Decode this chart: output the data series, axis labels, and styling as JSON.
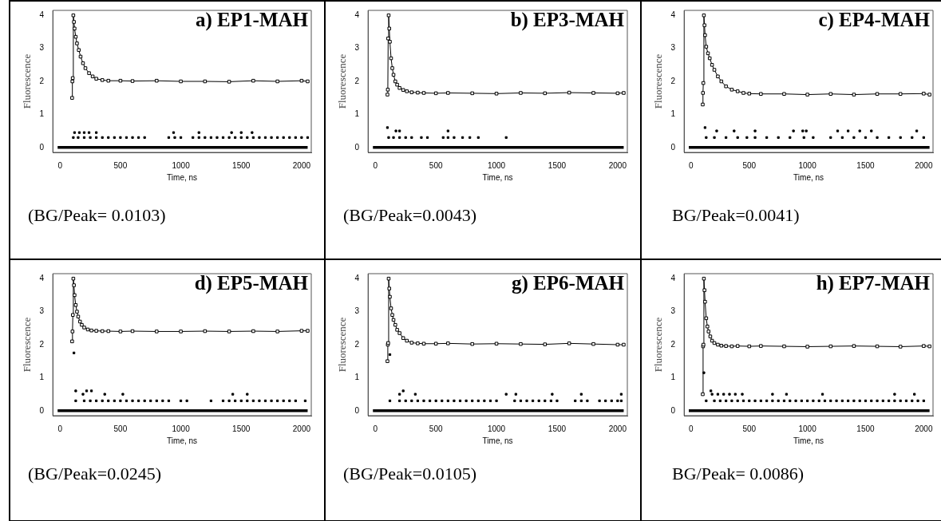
{
  "chart_data": [
    {
      "type": "scatter",
      "title": "a) EP1-MAH",
      "xlabel": "Time, ns",
      "ylabel": "Fluorescence",
      "xlim": [
        -60,
        2080
      ],
      "ylim": [
        -0.15,
        4.15
      ],
      "xticks": [
        0,
        500,
        1000,
        1500,
        2000
      ],
      "yticks": [
        0,
        1,
        2,
        3,
        4
      ],
      "grid": false,
      "legend": false,
      "marker": "square",
      "annotations": [
        "(BG/Peak= 0.0103)"
      ],
      "series": [
        {
          "type": "line",
          "color": "#000000",
          "x": [
            100,
            102,
            105,
            110,
            115,
            120,
            130,
            140,
            155,
            170,
            190,
            210,
            240,
            270,
            300,
            350,
            400,
            500,
            600,
            800,
            1000,
            1200,
            1400,
            1600,
            1800,
            2000,
            2050
          ],
          "values": [
            1.5,
            2.0,
            2.1,
            4.0,
            3.8,
            3.6,
            3.35,
            3.15,
            2.95,
            2.75,
            2.55,
            2.4,
            2.25,
            2.15,
            2.08,
            2.04,
            2.02,
            2.02,
            2.01,
            2.02,
            2.0,
            2.0,
            1.99,
            2.02,
            2.0,
            2.02,
            2.0
          ]
        },
        {
          "type": "scatter",
          "color": "#000000",
          "x": [
            110,
            150,
            200,
            250,
            300,
            350,
            400,
            450,
            500,
            550,
            600,
            650,
            700,
            900,
            950,
            1000,
            1100,
            1150,
            1200,
            1250,
            1300,
            1350,
            1400,
            1450,
            1500,
            1550,
            1600,
            1650,
            1700,
            1750,
            1800,
            1850,
            1900,
            1950,
            2000,
            2050
          ],
          "values": [
            0.3,
            0.3,
            0.3,
            0.3,
            0.3,
            0.3,
            0.3,
            0.3,
            0.3,
            0.3,
            0.3,
            0.3,
            0.3,
            0.3,
            0.3,
            0.3,
            0.3,
            0.3,
            0.3,
            0.3,
            0.3,
            0.3,
            0.3,
            0.3,
            0.3,
            0.3,
            0.3,
            0.3,
            0.3,
            0.3,
            0.3,
            0.3,
            0.3,
            0.3,
            0.3,
            0.3
          ]
        },
        {
          "type": "scatter",
          "color": "#000000",
          "x": [
            120,
            160,
            200,
            240,
            300,
            940,
            1150,
            1420,
            1500,
            1590
          ],
          "values": [
            0.45,
            0.45,
            0.45,
            0.45,
            0.45,
            0.45,
            0.45,
            0.45,
            0.45,
            0.45
          ]
        },
        {
          "type": "line",
          "marker": "none",
          "color": "#000000",
          "x": [
            -20,
            2050
          ],
          "values": [
            0,
            0
          ]
        }
      ]
    },
    {
      "type": "scatter",
      "title": "b) EP3-MAH",
      "xlabel": "Time, ns",
      "ylabel": "Fluorescence",
      "xlim": [
        -60,
        2080
      ],
      "ylim": [
        -0.15,
        4.15
      ],
      "xticks": [
        0,
        500,
        1000,
        1500,
        2000
      ],
      "yticks": [
        0,
        1,
        2,
        3,
        4
      ],
      "grid": false,
      "legend": false,
      "marker": "square",
      "annotations": [
        "(BG/Peak=0.0043)"
      ],
      "series": [
        {
          "type": "line",
          "color": "#000000",
          "x": [
            100,
            103,
            106,
            110,
            115,
            120,
            130,
            140,
            150,
            165,
            180,
            200,
            230,
            260,
            300,
            350,
            400,
            500,
            600,
            800,
            1000,
            1200,
            1400,
            1600,
            1800,
            2000,
            2050
          ],
          "values": [
            1.6,
            1.75,
            3.3,
            4.0,
            3.6,
            3.2,
            2.7,
            2.4,
            2.2,
            2.0,
            1.9,
            1.8,
            1.74,
            1.7,
            1.67,
            1.66,
            1.65,
            1.64,
            1.65,
            1.64,
            1.63,
            1.65,
            1.64,
            1.66,
            1.65,
            1.64,
            1.65
          ]
        },
        {
          "type": "scatter",
          "color": "#000000",
          "x": [
            110,
            150,
            200,
            250,
            300,
            380,
            430,
            560,
            600,
            650,
            720,
            780,
            850,
            1080
          ],
          "values": [
            0.3,
            0.3,
            0.3,
            0.3,
            0.3,
            0.3,
            0.3,
            0.3,
            0.3,
            0.3,
            0.3,
            0.3,
            0.3,
            0.3
          ]
        },
        {
          "type": "scatter",
          "color": "#000000",
          "x": [
            100,
            170,
            200,
            600
          ],
          "values": [
            0.6,
            0.5,
            0.5,
            0.5
          ]
        },
        {
          "type": "line",
          "marker": "none",
          "color": "#000000",
          "x": [
            -20,
            2050
          ],
          "values": [
            0,
            0
          ]
        }
      ]
    },
    {
      "type": "scatter",
      "title": "c) EP4-MAH",
      "xlabel": "Time, ns",
      "ylabel": "Fluorescence",
      "xlim": [
        -60,
        2080
      ],
      "ylim": [
        -0.15,
        4.15
      ],
      "xticks": [
        0,
        500,
        1000,
        1500,
        2000
      ],
      "yticks": [
        0,
        1,
        2,
        3,
        4
      ],
      "grid": false,
      "legend": false,
      "marker": "square",
      "annotations": [
        "BG/Peak=0.0041)"
      ],
      "series": [
        {
          "type": "line",
          "color": "#000000",
          "x": [
            100,
            102,
            105,
            110,
            115,
            120,
            130,
            145,
            160,
            180,
            200,
            230,
            260,
            300,
            350,
            400,
            450,
            500,
            600,
            800,
            1000,
            1200,
            1400,
            1600,
            1800,
            2000,
            2050
          ],
          "values": [
            1.3,
            1.65,
            1.95,
            4.0,
            3.7,
            3.4,
            3.05,
            2.85,
            2.7,
            2.5,
            2.35,
            2.15,
            2.0,
            1.85,
            1.75,
            1.7,
            1.65,
            1.63,
            1.62,
            1.62,
            1.6,
            1.62,
            1.6,
            1.62,
            1.62,
            1.63,
            1.6
          ]
        },
        {
          "type": "scatter",
          "color": "#000000",
          "x": [
            130,
            200,
            300,
            400,
            480,
            550,
            650,
            750,
            850,
            970,
            1050,
            1200,
            1300,
            1400,
            1500,
            1600,
            1700,
            1800,
            1900,
            2000
          ],
          "values": [
            0.3,
            0.3,
            0.3,
            0.3,
            0.3,
            0.3,
            0.3,
            0.3,
            0.3,
            0.3,
            0.3,
            0.3,
            0.3,
            0.3,
            0.3,
            0.3,
            0.3,
            0.3,
            0.3,
            0.3
          ]
        },
        {
          "type": "scatter",
          "color": "#000000",
          "x": [
            120,
            220,
            370,
            550,
            880,
            960,
            990,
            1260,
            1350,
            1450,
            1550,
            1940
          ],
          "values": [
            0.6,
            0.5,
            0.5,
            0.5,
            0.5,
            0.5,
            0.5,
            0.5,
            0.5,
            0.5,
            0.5,
            0.5
          ]
        },
        {
          "type": "line",
          "marker": "none",
          "color": "#000000",
          "x": [
            -20,
            2050
          ],
          "values": [
            0,
            0
          ]
        }
      ]
    },
    {
      "type": "scatter",
      "title": "d) EP5-MAH",
      "xlabel": "Time, ns",
      "ylabel": "Fluorescence",
      "xlim": [
        -60,
        2080
      ],
      "ylim": [
        -0.15,
        4.15
      ],
      "xticks": [
        0,
        500,
        1000,
        1500,
        2000
      ],
      "yticks": [
        0,
        1,
        2,
        3,
        4
      ],
      "grid": false,
      "legend": false,
      "marker": "square",
      "annotations": [
        "(BG/Peak=0.0245)"
      ],
      "series": [
        {
          "type": "line",
          "color": "#000000",
          "x": [
            100,
            103,
            106,
            110,
            115,
            120,
            130,
            140,
            150,
            165,
            180,
            200,
            230,
            260,
            300,
            350,
            400,
            500,
            600,
            800,
            1000,
            1200,
            1400,
            1600,
            1800,
            2000,
            2050
          ],
          "values": [
            2.1,
            2.4,
            2.9,
            4.0,
            3.8,
            3.5,
            3.2,
            3.0,
            2.85,
            2.7,
            2.6,
            2.52,
            2.46,
            2.43,
            2.42,
            2.41,
            2.41,
            2.4,
            2.41,
            2.4,
            2.4,
            2.41,
            2.4,
            2.41,
            2.4,
            2.42,
            2.42
          ]
        },
        {
          "type": "scatter",
          "color": "#000000",
          "x": [
            130,
            200,
            250,
            300,
            350,
            400,
            450,
            500,
            550,
            600,
            650,
            700,
            750,
            800,
            850,
            900,
            1000,
            1050,
            1250,
            1350,
            1400,
            1450,
            1500,
            1550,
            1600,
            1650,
            1700,
            1750,
            1800,
            1850,
            1900,
            1950,
            2030
          ],
          "values": [
            0.3,
            0.3,
            0.3,
            0.3,
            0.3,
            0.3,
            0.3,
            0.3,
            0.3,
            0.3,
            0.3,
            0.3,
            0.3,
            0.3,
            0.3,
            0.3,
            0.3,
            0.3,
            0.3,
            0.3,
            0.3,
            0.3,
            0.3,
            0.3,
            0.3,
            0.3,
            0.3,
            0.3,
            0.3,
            0.3,
            0.3,
            0.3,
            0.3
          ]
        },
        {
          "type": "scatter",
          "color": "#000000",
          "x": [
            115,
            130,
            190,
            220,
            260,
            370,
            520,
            1430,
            1550
          ],
          "values": [
            1.75,
            0.6,
            0.5,
            0.6,
            0.6,
            0.5,
            0.5,
            0.5,
            0.5
          ]
        },
        {
          "type": "line",
          "marker": "none",
          "color": "#000000",
          "x": [
            -20,
            2050
          ],
          "values": [
            0,
            0
          ]
        }
      ]
    },
    {
      "type": "scatter",
      "title": "g) EP6-MAH",
      "xlabel": "Time, ns",
      "ylabel": "Fluorescence",
      "xlim": [
        -60,
        2080
      ],
      "ylim": [
        -0.15,
        4.15
      ],
      "xticks": [
        0,
        500,
        1000,
        1500,
        2000
      ],
      "yticks": [
        0,
        1,
        2,
        3,
        4
      ],
      "grid": false,
      "legend": false,
      "marker": "square",
      "annotations": [
        "(BG/Peak=0.0105)"
      ],
      "series": [
        {
          "type": "line",
          "color": "#000000",
          "x": [
            100,
            103,
            106,
            110,
            115,
            120,
            130,
            140,
            150,
            165,
            180,
            200,
            230,
            260,
            300,
            350,
            400,
            500,
            600,
            800,
            1000,
            1200,
            1400,
            1600,
            1800,
            2000,
            2050
          ],
          "values": [
            1.5,
            2.0,
            2.05,
            4.0,
            3.7,
            3.45,
            3.1,
            2.9,
            2.75,
            2.6,
            2.45,
            2.35,
            2.2,
            2.12,
            2.06,
            2.04,
            2.03,
            2.03,
            2.04,
            2.02,
            2.03,
            2.02,
            2.01,
            2.04,
            2.02,
            2.0,
            2.0
          ]
        },
        {
          "type": "scatter",
          "color": "#000000",
          "x": [
            120,
            200,
            250,
            300,
            350,
            400,
            450,
            500,
            550,
            600,
            650,
            700,
            750,
            800,
            850,
            900,
            950,
            1000,
            1150,
            1200,
            1250,
            1300,
            1350,
            1400,
            1450,
            1500,
            1650,
            1700,
            1750,
            1850,
            1900,
            1950,
            2000,
            2030
          ],
          "values": [
            0.3,
            0.3,
            0.3,
            0.3,
            0.3,
            0.3,
            0.3,
            0.3,
            0.3,
            0.3,
            0.3,
            0.3,
            0.3,
            0.3,
            0.3,
            0.3,
            0.3,
            0.3,
            0.3,
            0.3,
            0.3,
            0.3,
            0.3,
            0.3,
            0.3,
            0.3,
            0.3,
            0.3,
            0.3,
            0.3,
            0.3,
            0.3,
            0.3,
            0.3
          ]
        },
        {
          "type": "scatter",
          "color": "#000000",
          "x": [
            120,
            200,
            230,
            330,
            1080,
            1160,
            1460,
            1700,
            2030
          ],
          "values": [
            1.7,
            0.5,
            0.6,
            0.5,
            0.5,
            0.5,
            0.5,
            0.5,
            0.5
          ]
        },
        {
          "type": "line",
          "marker": "none",
          "color": "#000000",
          "x": [
            -20,
            2050
          ],
          "values": [
            0,
            0
          ]
        }
      ]
    },
    {
      "type": "scatter",
      "title": "h) EP7-MAH",
      "xlabel": "Time, ns",
      "ylabel": "Fluorescence",
      "xlim": [
        -60,
        2080
      ],
      "ylim": [
        -0.15,
        4.15
      ],
      "xticks": [
        0,
        500,
        1000,
        1500,
        2000
      ],
      "yticks": [
        0,
        1,
        2,
        3,
        4
      ],
      "grid": false,
      "legend": false,
      "marker": "square",
      "annotations": [
        "BG/Peak= 0.0086)"
      ],
      "series": [
        {
          "type": "line",
          "color": "#000000",
          "x": [
            100,
            103,
            106,
            110,
            115,
            120,
            130,
            140,
            150,
            165,
            180,
            200,
            230,
            260,
            300,
            350,
            400,
            500,
            600,
            800,
            1000,
            1200,
            1400,
            1600,
            1800,
            2000,
            2050
          ],
          "values": [
            0.5,
            1.95,
            2.0,
            4.0,
            3.65,
            3.3,
            2.8,
            2.55,
            2.4,
            2.25,
            2.12,
            2.05,
            2.0,
            1.97,
            1.96,
            1.95,
            1.96,
            1.95,
            1.96,
            1.95,
            1.94,
            1.95,
            1.96,
            1.95,
            1.94,
            1.96,
            1.95
          ]
        },
        {
          "type": "scatter",
          "color": "#000000",
          "x": [
            130,
            200,
            250,
            300,
            350,
            400,
            450,
            500,
            550,
            600,
            650,
            700,
            750,
            800,
            850,
            900,
            950,
            1000,
            1050,
            1100,
            1150,
            1200,
            1250,
            1300,
            1350,
            1400,
            1450,
            1500,
            1550,
            1600,
            1650,
            1700,
            1750,
            1800,
            1850,
            1900,
            1950,
            2000
          ],
          "values": [
            0.3,
            0.3,
            0.3,
            0.3,
            0.3,
            0.3,
            0.3,
            0.3,
            0.3,
            0.3,
            0.3,
            0.3,
            0.3,
            0.3,
            0.3,
            0.3,
            0.3,
            0.3,
            0.3,
            0.3,
            0.3,
            0.3,
            0.3,
            0.3,
            0.3,
            0.3,
            0.3,
            0.3,
            0.3,
            0.3,
            0.3,
            0.3,
            0.3,
            0.3,
            0.3,
            0.3,
            0.3,
            0.3
          ]
        },
        {
          "type": "scatter",
          "color": "#000000",
          "x": [
            110,
            170,
            180,
            230,
            280,
            330,
            380,
            440,
            700,
            820,
            1130,
            1750,
            1920
          ],
          "values": [
            1.15,
            0.6,
            0.5,
            0.5,
            0.5,
            0.5,
            0.5,
            0.5,
            0.5,
            0.5,
            0.5,
            0.5,
            0.5
          ]
        },
        {
          "type": "line",
          "marker": "none",
          "color": "#000000",
          "x": [
            -20,
            2050
          ],
          "values": [
            0,
            0
          ]
        }
      ]
    }
  ]
}
